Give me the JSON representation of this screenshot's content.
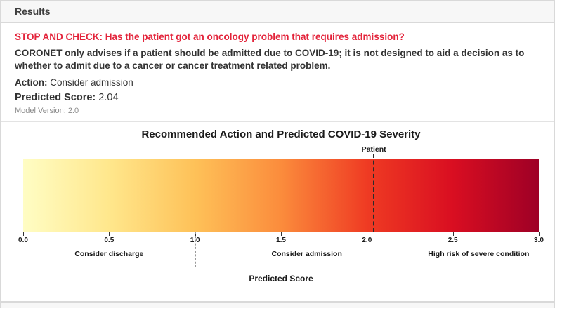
{
  "panel": {
    "header": "Results"
  },
  "results": {
    "stop_check": "STOP AND CHECK: Has the patient got an oncology problem that requires admission?",
    "advisory": "CORONET only advises if a patient should be admitted due to COVID-19; it is not designed to aid a decision as to whether to admit due to a cancer or cancer treatment related problem.",
    "action_label": "Action:",
    "action_value": "Consider admission",
    "score_label": "Predicted Score:",
    "score_value": "2.04",
    "model_version": "Model Version: 2.0"
  },
  "colors": {
    "alert_red": "#e3243b",
    "text_dark": "#333333",
    "muted_gray": "#8a8a8a",
    "header_bg": "#f7f7f7",
    "border": "#d9d9d9"
  },
  "chart_data": {
    "type": "heatmap",
    "title": "Recommended Action and Predicted COVID-19 Severity",
    "xlabel": "Predicted Score",
    "xlim": [
      0.0,
      3.0
    ],
    "xticks": [
      0.0,
      0.5,
      1.0,
      1.5,
      2.0,
      2.5,
      3.0
    ],
    "grid": false,
    "patient_marker": {
      "label": "Patient",
      "value": 2.04
    },
    "zones": [
      {
        "label": "Consider discharge",
        "from": 0.0,
        "to": 1.0
      },
      {
        "label": "Consider admission",
        "from": 1.0,
        "to": 2.3
      },
      {
        "label": "High risk of severe condition",
        "from": 2.3,
        "to": 3.0
      }
    ],
    "gradient_colormap": [
      "#fffdc4",
      "#ffe78c",
      "#fec158",
      "#fb8c3c",
      "#ef3b23",
      "#d90e21",
      "#9e0026"
    ]
  }
}
